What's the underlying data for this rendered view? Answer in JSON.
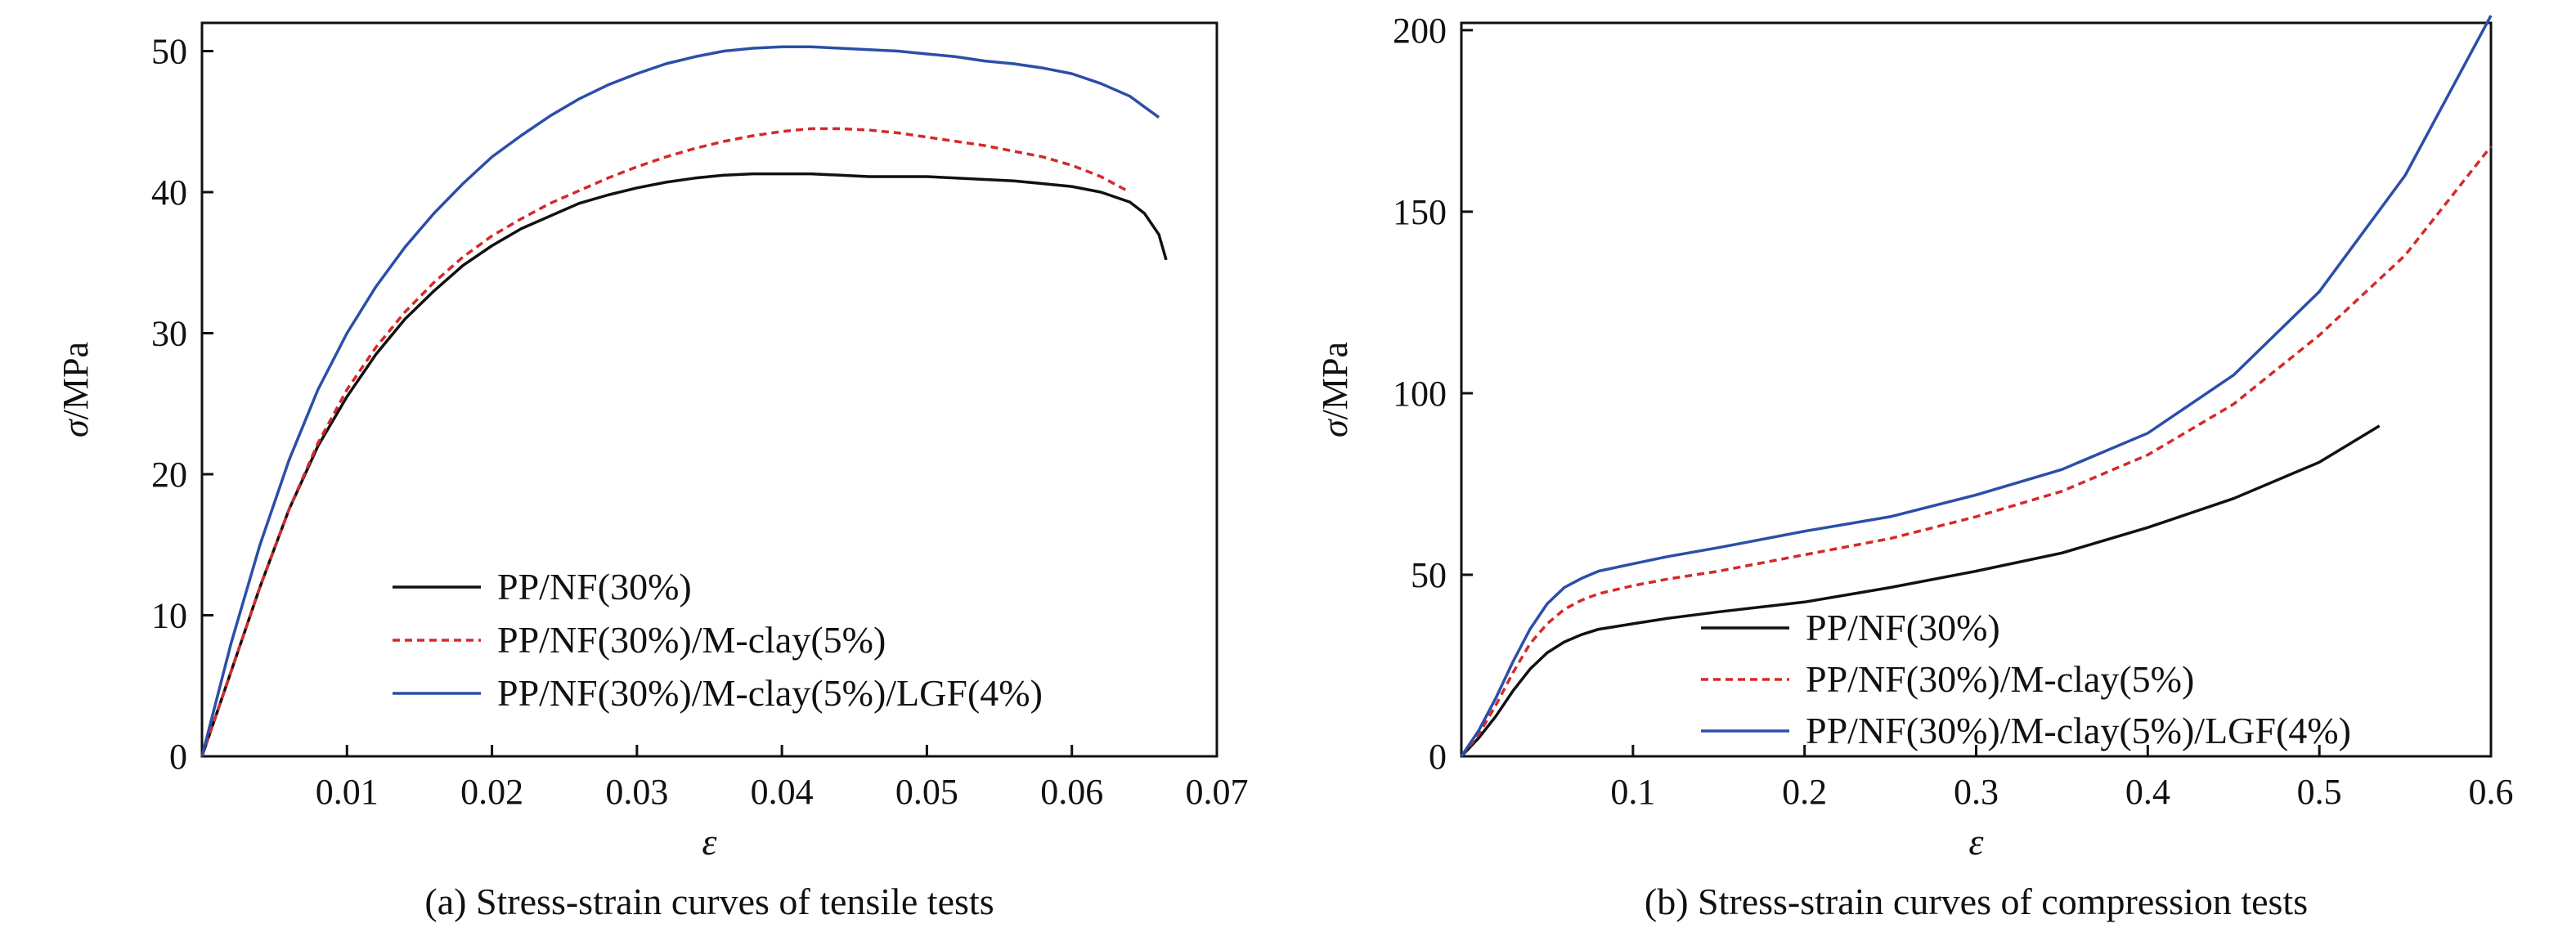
{
  "chart_data": [
    {
      "type": "line",
      "caption": "(a) Stress-strain curves of tensile tests",
      "xlabel": "ε",
      "ylabel_symbol": "σ",
      "ylabel_unit": "/MPa",
      "xlim": [
        0,
        0.07
      ],
      "ylim": [
        0,
        52
      ],
      "xticks": [
        0.01,
        0.02,
        0.03,
        0.04,
        0.05,
        0.06,
        0.07
      ],
      "xtick_labels": [
        "0.01",
        "0.02",
        "0.03",
        "0.04",
        "0.05",
        "0.06",
        "0.07"
      ],
      "yticks": [
        0,
        10,
        20,
        30,
        40,
        50
      ],
      "ytick_labels": [
        "0",
        "10",
        "20",
        "30",
        "40",
        "50"
      ],
      "grid": false,
      "legend_position": "bottom-center",
      "series": [
        {
          "name": "PP/NF(30%)",
          "color": "#111111",
          "dash": "solid",
          "points": [
            [
              0,
              0
            ],
            [
              0.002,
              6
            ],
            [
              0.004,
              12
            ],
            [
              0.006,
              17.5
            ],
            [
              0.008,
              22
            ],
            [
              0.01,
              25.5
            ],
            [
              0.012,
              28.5
            ],
            [
              0.014,
              31
            ],
            [
              0.016,
              33
            ],
            [
              0.018,
              34.8
            ],
            [
              0.02,
              36.2
            ],
            [
              0.022,
              37.4
            ],
            [
              0.024,
              38.3
            ],
            [
              0.026,
              39.2
            ],
            [
              0.028,
              39.8
            ],
            [
              0.03,
              40.3
            ],
            [
              0.032,
              40.7
            ],
            [
              0.034,
              41
            ],
            [
              0.036,
              41.2
            ],
            [
              0.038,
              41.3
            ],
            [
              0.04,
              41.3
            ],
            [
              0.042,
              41.3
            ],
            [
              0.044,
              41.2
            ],
            [
              0.046,
              41.1
            ],
            [
              0.048,
              41.1
            ],
            [
              0.05,
              41.1
            ],
            [
              0.052,
              41
            ],
            [
              0.054,
              40.9
            ],
            [
              0.056,
              40.8
            ],
            [
              0.058,
              40.6
            ],
            [
              0.06,
              40.4
            ],
            [
              0.062,
              40
            ],
            [
              0.064,
              39.3
            ],
            [
              0.065,
              38.5
            ],
            [
              0.066,
              37
            ],
            [
              0.0665,
              35.2
            ]
          ]
        },
        {
          "name": "PP/NF(30%)/M-clay(5%)",
          "color": "#d42a2a",
          "dash": "dashed",
          "points": [
            [
              0,
              0
            ],
            [
              0.002,
              6
            ],
            [
              0.004,
              12
            ],
            [
              0.006,
              17.5
            ],
            [
              0.008,
              22.2
            ],
            [
              0.01,
              26
            ],
            [
              0.012,
              29
            ],
            [
              0.014,
              31.5
            ],
            [
              0.016,
              33.6
            ],
            [
              0.018,
              35.4
            ],
            [
              0.02,
              36.9
            ],
            [
              0.022,
              38.1
            ],
            [
              0.024,
              39.2
            ],
            [
              0.026,
              40.1
            ],
            [
              0.028,
              41
            ],
            [
              0.03,
              41.8
            ],
            [
              0.032,
              42.5
            ],
            [
              0.034,
              43.1
            ],
            [
              0.036,
              43.6
            ],
            [
              0.038,
              44
            ],
            [
              0.04,
              44.3
            ],
            [
              0.042,
              44.5
            ],
            [
              0.044,
              44.5
            ],
            [
              0.046,
              44.4
            ],
            [
              0.048,
              44.2
            ],
            [
              0.05,
              43.9
            ],
            [
              0.052,
              43.6
            ],
            [
              0.054,
              43.3
            ],
            [
              0.056,
              42.9
            ],
            [
              0.058,
              42.5
            ],
            [
              0.06,
              41.9
            ],
            [
              0.062,
              41.1
            ],
            [
              0.064,
              40
            ]
          ]
        },
        {
          "name": "PP/NF(30%)/M-clay(5%)/LGF(4%)",
          "color": "#2b4fa8",
          "dash": "solid",
          "points": [
            [
              0,
              0
            ],
            [
              0.002,
              8
            ],
            [
              0.004,
              15
            ],
            [
              0.006,
              21
            ],
            [
              0.008,
              26
            ],
            [
              0.01,
              30
            ],
            [
              0.012,
              33.3
            ],
            [
              0.014,
              36.1
            ],
            [
              0.016,
              38.5
            ],
            [
              0.018,
              40.6
            ],
            [
              0.02,
              42.5
            ],
            [
              0.022,
              44
            ],
            [
              0.024,
              45.4
            ],
            [
              0.026,
              46.6
            ],
            [
              0.028,
              47.6
            ],
            [
              0.03,
              48.4
            ],
            [
              0.032,
              49.1
            ],
            [
              0.034,
              49.6
            ],
            [
              0.036,
              50
            ],
            [
              0.038,
              50.2
            ],
            [
              0.04,
              50.3
            ],
            [
              0.042,
              50.3
            ],
            [
              0.044,
              50.2
            ],
            [
              0.046,
              50.1
            ],
            [
              0.048,
              50
            ],
            [
              0.05,
              49.8
            ],
            [
              0.052,
              49.6
            ],
            [
              0.054,
              49.3
            ],
            [
              0.056,
              49.1
            ],
            [
              0.058,
              48.8
            ],
            [
              0.06,
              48.4
            ],
            [
              0.062,
              47.7
            ],
            [
              0.064,
              46.8
            ],
            [
              0.066,
              45.3
            ]
          ]
        }
      ]
    },
    {
      "type": "line",
      "caption": "(b) Stress-strain curves of compression tests",
      "xlabel": "ε",
      "ylabel_symbol": "σ",
      "ylabel_unit": "/MPa",
      "xlim": [
        0,
        0.6
      ],
      "ylim": [
        0,
        202
      ],
      "xticks": [
        0.1,
        0.2,
        0.3,
        0.4,
        0.5,
        0.6
      ],
      "xtick_labels": [
        "0.1",
        "0.2",
        "0.3",
        "0.4",
        "0.5",
        "0.6"
      ],
      "yticks": [
        0,
        50,
        100,
        150,
        200
      ],
      "ytick_labels": [
        "0",
        "50",
        "100",
        "150",
        "200"
      ],
      "grid": false,
      "legend_position": "bottom-right",
      "series": [
        {
          "name": "PP/NF(30%)",
          "color": "#111111",
          "dash": "solid",
          "points": [
            [
              0,
              0
            ],
            [
              0.01,
              5
            ],
            [
              0.02,
              11
            ],
            [
              0.03,
              18
            ],
            [
              0.04,
              24
            ],
            [
              0.05,
              28.5
            ],
            [
              0.06,
              31.5
            ],
            [
              0.07,
              33.5
            ],
            [
              0.08,
              35
            ],
            [
              0.1,
              36.5
            ],
            [
              0.12,
              38
            ],
            [
              0.15,
              39.8
            ],
            [
              0.2,
              42.5
            ],
            [
              0.25,
              46.5
            ],
            [
              0.3,
              51
            ],
            [
              0.35,
              56
            ],
            [
              0.4,
              63
            ],
            [
              0.45,
              71
            ],
            [
              0.5,
              81
            ],
            [
              0.535,
              91
            ]
          ]
        },
        {
          "name": "PP/NF(30%)/M-clay(5%)",
          "color": "#d42a2a",
          "dash": "dashed",
          "points": [
            [
              0,
              0
            ],
            [
              0.01,
              6
            ],
            [
              0.02,
              14
            ],
            [
              0.03,
              23
            ],
            [
              0.04,
              31
            ],
            [
              0.05,
              36.5
            ],
            [
              0.06,
              40.5
            ],
            [
              0.07,
              43
            ],
            [
              0.08,
              44.8
            ],
            [
              0.1,
              47
            ],
            [
              0.12,
              48.8
            ],
            [
              0.15,
              51
            ],
            [
              0.2,
              55.5
            ],
            [
              0.25,
              60
            ],
            [
              0.3,
              66
            ],
            [
              0.35,
              73
            ],
            [
              0.4,
              83
            ],
            [
              0.45,
              97
            ],
            [
              0.5,
              116
            ],
            [
              0.55,
              138
            ],
            [
              0.6,
              168
            ]
          ]
        },
        {
          "name": "PP/NF(30%)/M-clay(5%)/LGF(4%)",
          "color": "#2b4fa8",
          "dash": "solid",
          "points": [
            [
              0,
              0
            ],
            [
              0.01,
              7
            ],
            [
              0.02,
              16
            ],
            [
              0.03,
              26
            ],
            [
              0.04,
              35
            ],
            [
              0.05,
              42
            ],
            [
              0.06,
              46.5
            ],
            [
              0.07,
              49
            ],
            [
              0.08,
              51
            ],
            [
              0.1,
              53
            ],
            [
              0.12,
              55
            ],
            [
              0.15,
              57.5
            ],
            [
              0.2,
              62
            ],
            [
              0.25,
              66
            ],
            [
              0.3,
              72
            ],
            [
              0.35,
              79
            ],
            [
              0.4,
              89
            ],
            [
              0.45,
              105
            ],
            [
              0.5,
              128
            ],
            [
              0.55,
              160
            ],
            [
              0.6,
              204
            ]
          ]
        }
      ]
    }
  ]
}
